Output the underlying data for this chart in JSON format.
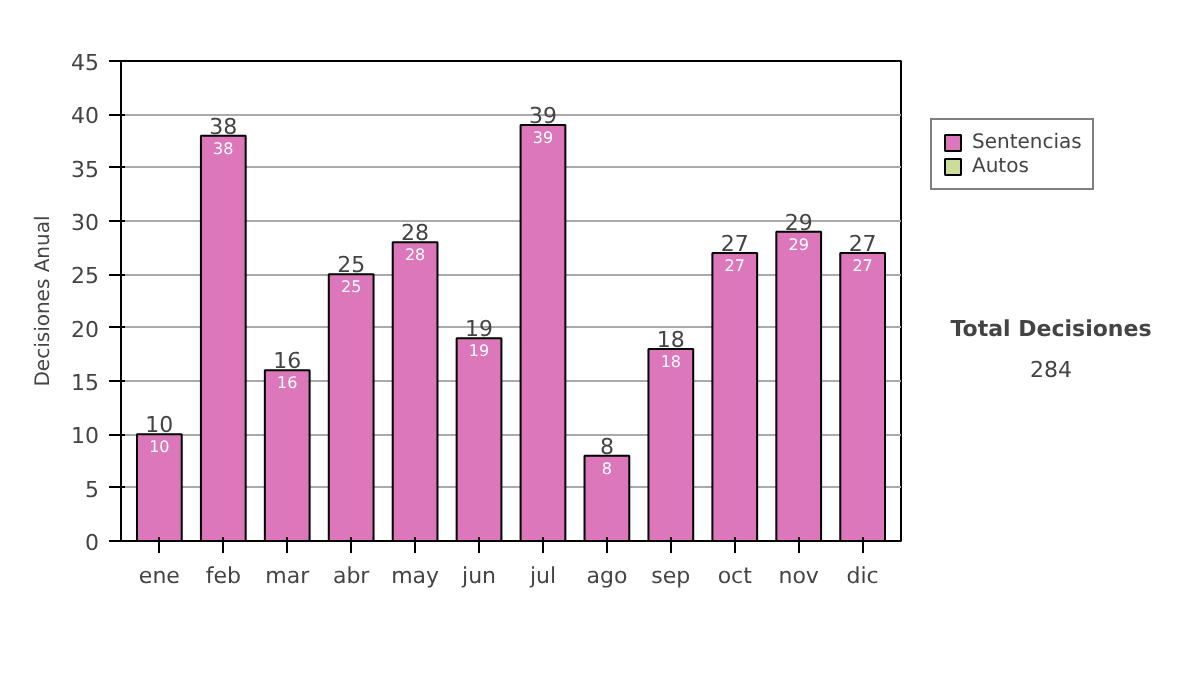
{
  "chart_data": {
    "type": "bar",
    "stacked": true,
    "ylabel": "Decisiones Anual",
    "categories": [
      "ene",
      "feb",
      "mar",
      "abr",
      "may",
      "jun",
      "jul",
      "ago",
      "sep",
      "oct",
      "nov",
      "dic"
    ],
    "series": [
      {
        "name": "Sentencias",
        "color": "#dd77bb",
        "values": [
          10,
          38,
          16,
          25,
          28,
          19,
          39,
          8,
          18,
          27,
          29,
          27
        ]
      },
      {
        "name": "Autos",
        "color": "#ccdd99",
        "values": [
          null,
          null,
          null,
          null,
          null,
          null,
          null,
          null,
          null,
          null,
          null,
          null
        ]
      }
    ],
    "totals": [
      "10",
      "38",
      "16",
      "25",
      "28",
      "19",
      "39",
      "8",
      "18",
      "27",
      "29",
      "27"
    ],
    "data_labels": true,
    "ylim": [
      0,
      45
    ],
    "yticks": [
      0,
      5,
      10,
      15,
      20,
      25,
      30,
      35,
      40,
      45
    ],
    "grid": "y",
    "legend": "right",
    "annotations": [
      "Total Decisiones",
      "284"
    ]
  }
}
